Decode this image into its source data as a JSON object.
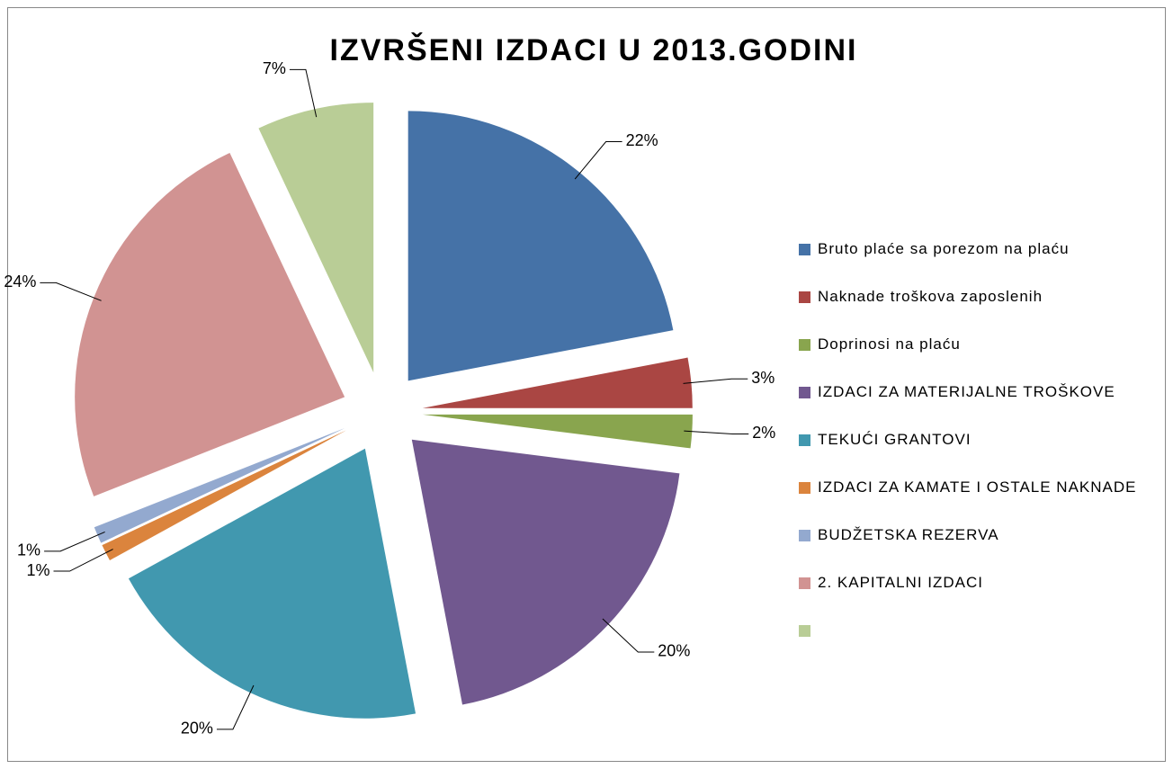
{
  "chart_data": {
    "type": "pie",
    "title": "IZVRŠENI IZDACI U 2013.GODINI",
    "categories": [
      "Bruto plaće sa porezom na plaću",
      "Naknade troškova zaposlenih",
      "Doprinosi na plaću",
      "IZDACI ZA MATERIJALNE TROŠKOVE",
      "TEKUĆI GRANTOVI",
      "IZDACI ZA KAMATE I OSTALE NAKNADE",
      "BUDŽETSKA REZERVA",
      "2. KAPITALNI IZDACI",
      null
    ],
    "values": [
      22,
      3,
      2,
      20,
      20,
      1,
      1,
      24,
      7
    ],
    "value_labels": [
      "22%",
      "3%",
      "2%",
      "20%",
      "20%",
      "1%",
      "1%",
      "24%",
      "7%"
    ],
    "colors": [
      "#4572a7",
      "#aa4643",
      "#89a54e",
      "#71588f",
      "#4198af",
      "#db843d",
      "#93a9cf",
      "#d19392",
      "#b9cd96"
    ],
    "legend": "right"
  }
}
